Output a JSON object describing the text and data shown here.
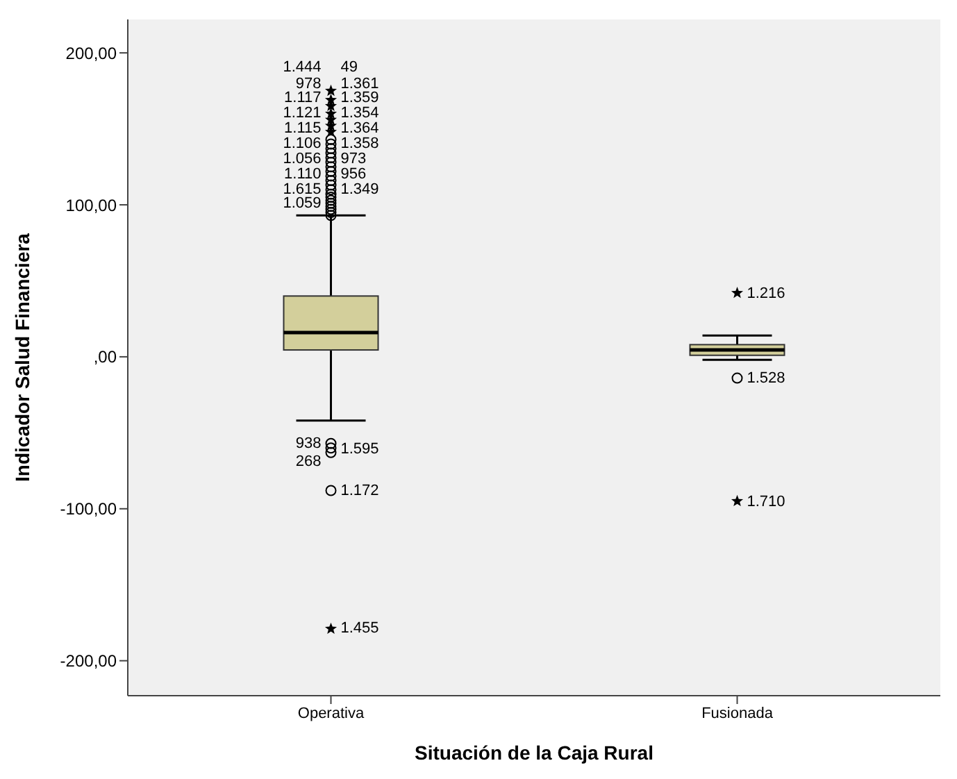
{
  "chart_data": {
    "type": "box",
    "xlabel": "Situación de la Caja Rural",
    "ylabel": "Indicador Salud Financiera",
    "categories": [
      "Operativa",
      "Fusionada"
    ],
    "color": "#d3cf9b",
    "boxes": [
      {
        "low": -42,
        "q1": 4.5,
        "median": 16,
        "q3": 40,
        "high": 93,
        "outliers": [
          93,
          95,
          97,
          99,
          101,
          103,
          105,
          107,
          110,
          113,
          116,
          119,
          122,
          125,
          128,
          131,
          134,
          137,
          140,
          143,
          148,
          152,
          156,
          160,
          165,
          169,
          175,
          -57,
          -60,
          -63,
          -88,
          -179
        ]
      },
      {
        "low": -2,
        "q1": 1,
        "median": 4.5,
        "q3": 8,
        "high": 14,
        "outliers": [
          42,
          -14,
          -95
        ]
      }
    ],
    "ylim": [
      -223,
      222
    ],
    "yticks": [
      {
        "value": -200,
        "label": "-200,00"
      },
      {
        "value": -100,
        "label": "-100,00"
      },
      {
        "value": 0,
        "label": ",00"
      },
      {
        "value": 100,
        "label": "100,00"
      },
      {
        "value": 200,
        "label": "200,00"
      }
    ],
    "grid": false,
    "annotations": [
      "1.444",
      "49",
      "978",
      "1.361",
      "1.117",
      "1.359",
      "1.121",
      "1.354",
      "1.115",
      "1.364",
      "1.106",
      "1.358",
      "1.056",
      "973",
      "1.110",
      "956",
      "1.615",
      "1.349",
      "1.059",
      "1.455",
      "938",
      "1.595",
      "268",
      "1.172",
      "1.216",
      "1.528",
      "1.710"
    ]
  }
}
